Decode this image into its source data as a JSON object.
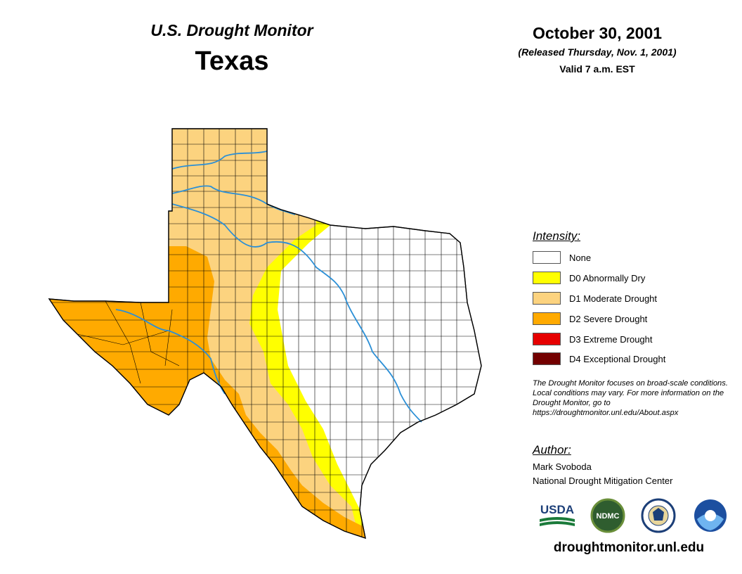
{
  "header": {
    "subtitle": "U.S. Drought Monitor",
    "title": "Texas",
    "date": "October 30, 2001",
    "released": "(Released Thursday, Nov. 1, 2001)",
    "valid": "Valid 7 a.m. EST"
  },
  "legend": {
    "heading": "Intensity:",
    "items": [
      {
        "label": "None",
        "color": "#ffffff"
      },
      {
        "label": "D0 Abnormally Dry",
        "color": "#ffff00"
      },
      {
        "label": "D1 Moderate Drought",
        "color": "#fcd37f"
      },
      {
        "label": "D2 Severe Drought",
        "color": "#ffaa00"
      },
      {
        "label": "D3 Extreme Drought",
        "color": "#e60000"
      },
      {
        "label": "D4 Exceptional Drought",
        "color": "#730000"
      }
    ]
  },
  "note": "The Drought Monitor focuses on broad-scale conditions. Local conditions may vary. For more information on the Drought Monitor, go to https://droughtmonitor.unl.edu/About.aspx",
  "author": {
    "heading": "Author:",
    "name": "Mark Svoboda",
    "organization": "National Drought Mitigation Center"
  },
  "logos": {
    "usda": "USDA",
    "ndmc": "NDMC"
  },
  "footer_url": "droughtmonitor.unl.edu",
  "map_colors": {
    "river": "#2b8fd6",
    "county_line": "#000000"
  }
}
